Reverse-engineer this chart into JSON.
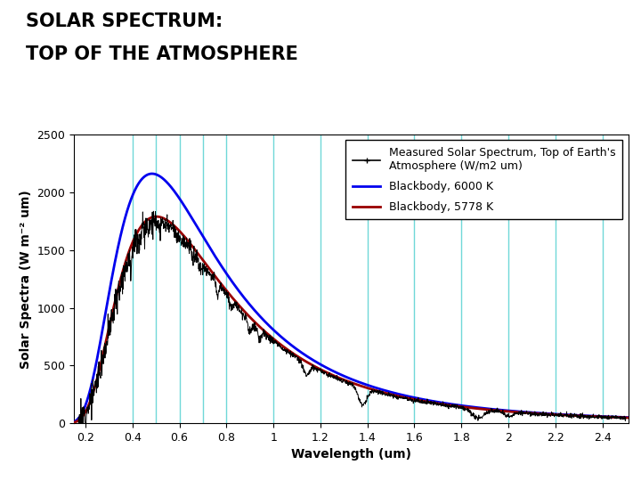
{
  "title_line1": "SOLAR SPECTRUM:",
  "title_line2": "TOP OF THE ATMOSPHERE",
  "xlabel": "Wavelength (um)",
  "ylabel": "Solar Spectra (W m⁻² um)",
  "xlim": [
    0.15,
    2.51
  ],
  "ylim": [
    0,
    2500
  ],
  "xticks": [
    0.2,
    0.4,
    0.6,
    0.8,
    1.0,
    1.2,
    1.4,
    1.6,
    1.8,
    2.0,
    2.2,
    2.4
  ],
  "xtick_labels": [
    "0.2",
    "0.4",
    "0.6",
    "0.8",
    "1",
    "1.2",
    "1.4",
    "1.6",
    "1.8",
    "2",
    "2.2",
    "2.4"
  ],
  "yticks": [
    0,
    500,
    1000,
    1500,
    2000,
    2500
  ],
  "vertical_lines": [
    0.4,
    0.5,
    0.6,
    0.7,
    0.8,
    1.0,
    1.2,
    1.4,
    1.6,
    1.8,
    2.0,
    2.2,
    2.4
  ],
  "vline_color": "#70D8D8",
  "T_6000": 6000,
  "T_5778": 5778,
  "bb_color_6000": "#0000EE",
  "bb_color_5778": "#990000",
  "measured_color": "#000000",
  "legend_measured": "Measured Solar Spectrum, Top of Earth's\nAtmosphere (W/m2 um)",
  "legend_6000": "Blackbody, 6000 K",
  "legend_5778": "Blackbody, 5778 K",
  "background_color": "#ffffff",
  "title_fontsize": 15,
  "axis_fontsize": 10,
  "tick_fontsize": 9,
  "legend_fontsize": 9
}
